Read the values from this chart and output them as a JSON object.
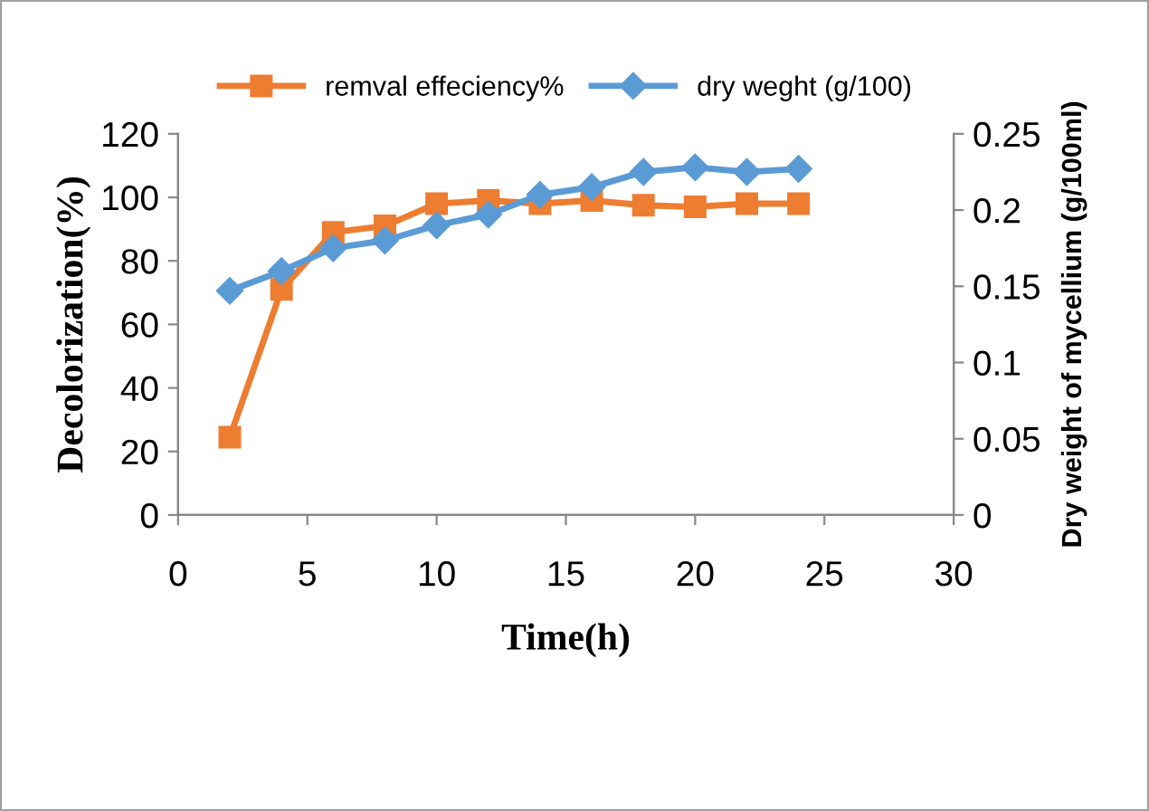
{
  "chart_data": {
    "type": "line",
    "xlabel": "Time(h)",
    "ylabel": "Decolorization(%)",
    "y2label": "Dry weight of mycellium (g/100ml)",
    "x": [
      2,
      4,
      6,
      8,
      10,
      12,
      14,
      16,
      18,
      20,
      22,
      24
    ],
    "series": [
      {
        "name": "remval effeciency%",
        "color": "#ed7d31",
        "marker": "square",
        "values": [
          24.5,
          71,
          89,
          91,
          98,
          99,
          98,
          99,
          97.5,
          97,
          98,
          98
        ]
      },
      {
        "name": "dry weght (g/100)",
        "color": "#5b9bd5",
        "marker": "diamond",
        "axis": "y2",
        "values": [
          0.147,
          0.16,
          0.175,
          0.18,
          0.19,
          0.197,
          0.21,
          0.215,
          0.225,
          0.228,
          0.225,
          0.227
        ]
      }
    ],
    "xlim": [
      0,
      30
    ],
    "xticks": [
      0,
      5,
      10,
      15,
      20,
      25,
      30
    ],
    "ylim": [
      0,
      120
    ],
    "yticks": [
      0,
      20,
      40,
      60,
      80,
      100,
      120
    ],
    "y2lim": [
      0,
      0.25
    ],
    "y2ticks": [
      0,
      0.05,
      0.1,
      0.15,
      0.2,
      0.25
    ],
    "grid": false,
    "legend": "top",
    "line_style": "solid"
  }
}
